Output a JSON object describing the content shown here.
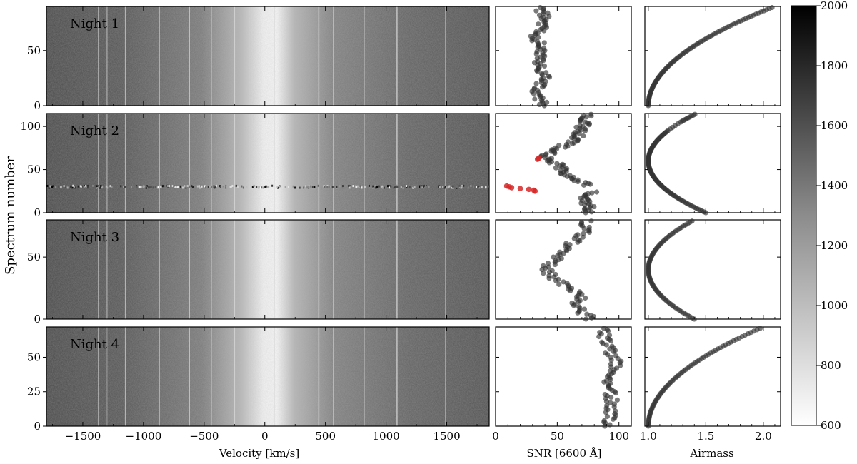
{
  "figure": {
    "ylabel": "Spectrum number",
    "xlabel_velocity": "Velocity [km/s]",
    "xlabel_snr": "SNR [6600 Å]",
    "xlabel_airmass": "Airmass"
  },
  "colorbar": {
    "ticks": [
      "600",
      "800",
      "1000",
      "1200",
      "1400",
      "1600",
      "1800",
      "2000"
    ],
    "values": [
      600,
      800,
      1000,
      1200,
      1400,
      1600,
      1800,
      2000
    ],
    "range": [
      600,
      2000
    ]
  },
  "velocity_ticks": [
    "−1500",
    "−1000",
    "−500",
    "0",
    "500",
    "1000",
    "1500"
  ],
  "snr_ticks": [
    "0",
    "50",
    "100"
  ],
  "airmass_ticks": [
    "1.0",
    "1.5",
    "2.0"
  ],
  "chart_data": {
    "type": "heatmap",
    "colormap": "Greys",
    "highlight_color": "#d62728",
    "x_axis": {
      "label": "Velocity [km/s]",
      "range": [
        -1800,
        1850
      ],
      "ticks": [
        -1500,
        -1000,
        -500,
        0,
        500,
        1000,
        1500
      ]
    },
    "snr_axis": {
      "label": "SNR [6600 Å]",
      "range": [
        0,
        110
      ],
      "ticks": [
        0,
        50,
        100
      ]
    },
    "airmass_axis": {
      "label": "Airmass",
      "range": [
        0.97,
        2.15
      ],
      "ticks": [
        1.0,
        1.5,
        2.0
      ]
    },
    "telluric_lines_kms": [
      -1370,
      -1300,
      -1150,
      -870,
      -620,
      -440,
      -250,
      -130,
      80,
      445,
      565,
      820,
      1090,
      1490,
      1700
    ],
    "nights": [
      {
        "label": "Night 1",
        "n_spectra": 90,
        "y_ticks": [
          0,
          50
        ],
        "y_tick_labels": [
          "0",
          "50"
        ],
        "snr_ext": [
          [
            0,
            38
          ],
          [
            12,
            32
          ],
          [
            25,
            40
          ],
          [
            38,
            34
          ],
          [
            50,
            38
          ],
          [
            62,
            33
          ],
          [
            75,
            40
          ],
          [
            90,
            37
          ]
        ],
        "airmass_min": 1.0,
        "airmass_at_min_index": 0,
        "airmass_end": 2.1,
        "bad_rows": []
      },
      {
        "label": "Night 2",
        "n_spectra": 115,
        "y_ticks": [
          0,
          50,
          100
        ],
        "y_tick_labels": [
          "0",
          "50",
          "100"
        ],
        "snr_ext": [
          [
            0,
            78
          ],
          [
            15,
            72
          ],
          [
            28,
            80
          ],
          [
            42,
            58
          ],
          [
            55,
            52
          ],
          [
            65,
            38
          ],
          [
            85,
            65
          ],
          [
            115,
            76
          ]
        ],
        "airmass_min": 1.0,
        "airmass_at_min_index": 60,
        "airmass_end": 1.5,
        "bad_rows": [
          30
        ],
        "highlight_snr_points": [
          [
            31,
            9
          ],
          [
            30,
            11
          ],
          [
            29,
            13
          ],
          [
            28,
            20
          ],
          [
            27,
            27
          ],
          [
            26,
            31
          ],
          [
            25,
            32
          ],
          [
            62,
            34
          ],
          [
            63,
            35
          ]
        ]
      },
      {
        "label": "Night 3",
        "n_spectra": 80,
        "y_ticks": [
          0,
          50
        ],
        "y_tick_labels": [
          "0",
          "50"
        ],
        "snr_ext": [
          [
            0,
            78
          ],
          [
            10,
            65
          ],
          [
            20,
            70
          ],
          [
            30,
            52
          ],
          [
            40,
            40
          ],
          [
            55,
            55
          ],
          [
            70,
            72
          ],
          [
            80,
            75
          ]
        ],
        "airmass_min": 1.0,
        "airmass_at_min_index": 40,
        "airmass_end": 1.4,
        "bad_rows": []
      },
      {
        "label": "Night 4",
        "n_spectra": 72,
        "y_ticks": [
          0,
          25,
          50
        ],
        "y_tick_labels": [
          "0",
          "25",
          "50"
        ],
        "snr_ext": [
          [
            0,
            92
          ],
          [
            15,
            95
          ],
          [
            30,
            92
          ],
          [
            45,
            98
          ],
          [
            60,
            90
          ],
          [
            72,
            85
          ]
        ],
        "airmass_min": 1.0,
        "airmass_at_min_index": 0,
        "airmass_end": 2.0,
        "bad_rows": []
      }
    ]
  }
}
